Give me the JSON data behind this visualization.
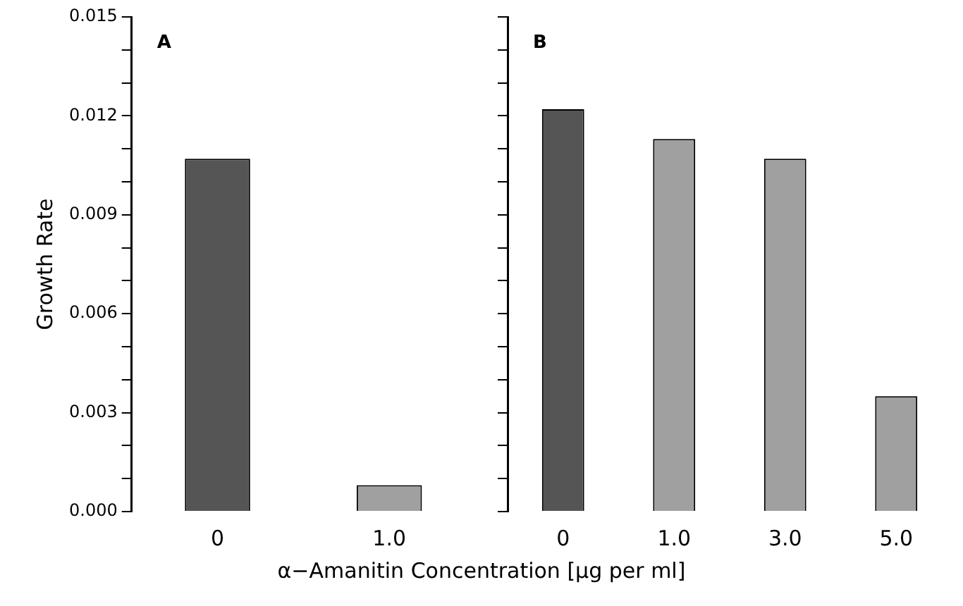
{
  "chart_data": [
    {
      "type": "bar",
      "ylabel": "Growth Rate",
      "xlabel": "α−Amanitin Concentration  [μg per ml]",
      "annotations": [
        "A"
      ],
      "categories": [
        "0",
        "1.0"
      ],
      "values": [
        0.0107,
        0.0008
      ],
      "colors": [
        "#555555",
        "#a0a0a0"
      ],
      "ylim": [
        0,
        0.015
      ],
      "yticks": [
        {
          "value": 0,
          "label": "0.000"
        },
        {
          "value": 0.001,
          "label": null
        },
        {
          "value": 0.002,
          "label": null
        },
        0.003,
        {
          "value": 0.004,
          "label": null
        },
        {
          "value": 0.005,
          "label": null
        },
        0.006,
        {
          "value": 0.007,
          "label": null
        },
        {
          "value": 0.008,
          "label": null
        },
        0.009,
        {
          "value": 0.01,
          "label": null
        },
        {
          "value": 0.011,
          "label": null
        },
        0.012,
        {
          "value": 0.013,
          "label": null
        },
        {
          "value": 0.014,
          "label": null
        },
        0.015
      ],
      "grid": false
    },
    {
      "type": "bar",
      "annotations": [
        "B"
      ],
      "categories": [
        "0",
        "1.0",
        "3.0",
        "5.0"
      ],
      "values": [
        0.0122,
        0.0113,
        0.0107,
        0.0035
      ],
      "colors": [
        "#555555",
        "#a0a0a0",
        "#a0a0a0",
        "#a0a0a0"
      ],
      "ylim": [
        0,
        0.015
      ],
      "yticks": [
        {
          "value": 0,
          "label": null
        },
        {
          "value": 0.001,
          "label": null
        },
        {
          "value": 0.002,
          "label": null
        },
        {
          "value": 0.003,
          "label": null
        },
        {
          "value": 0.004,
          "label": null
        },
        {
          "value": 0.005,
          "label": null
        },
        {
          "value": 0.006,
          "label": null
        },
        {
          "value": 0.007,
          "label": null
        },
        {
          "value": 0.008,
          "label": null
        },
        {
          "value": 0.009,
          "label": null
        },
        {
          "value": 0.01,
          "label": null
        },
        {
          "value": 0.011,
          "label": null
        },
        {
          "value": 0.012,
          "label": null
        },
        {
          "value": 0.013,
          "label": null
        },
        {
          "value": 0.014,
          "label": null
        },
        {
          "value": 0.015,
          "label": null
        }
      ],
      "tick_labels": "x",
      "grid": false
    }
  ]
}
